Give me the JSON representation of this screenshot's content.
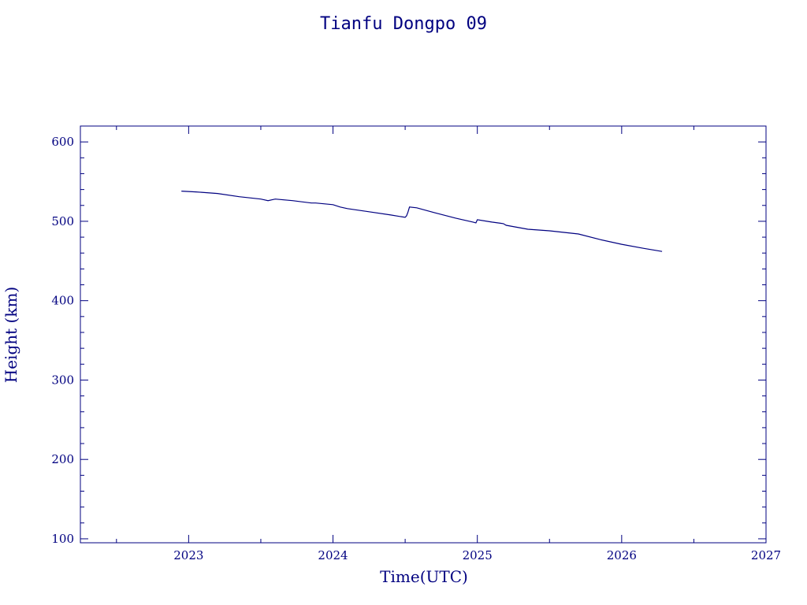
{
  "chart_data": {
    "type": "line",
    "title": "Tianfu Dongpo 09",
    "xlabel": "Time(UTC)",
    "ylabel": "Height (km)",
    "xlim": [
      2022.25,
      2027.0
    ],
    "ylim": [
      95,
      620
    ],
    "x_ticks": [
      "2023",
      "2024",
      "2025",
      "2026",
      "2027"
    ],
    "x_tick_values": [
      2023,
      2024,
      2025,
      2026,
      2027
    ],
    "y_ticks": [
      "100",
      "200",
      "300",
      "400",
      "500",
      "600"
    ],
    "y_tick_values": [
      100,
      200,
      300,
      400,
      500,
      600
    ],
    "grid": false,
    "color": "#000080",
    "series": [
      {
        "x": [
          2022.95,
          2023.05,
          2023.2,
          2023.35,
          2023.5,
          2023.55,
          2023.6,
          2023.72,
          2023.85,
          2023.88,
          2024.0,
          2024.05,
          2024.1,
          2024.25,
          2024.4,
          2024.5,
          2024.51,
          2024.52,
          2024.53,
          2024.58,
          2024.7,
          2024.85,
          2024.97,
          2024.99,
          2025.0,
          2025.1,
          2025.18,
          2025.2,
          2025.35,
          2025.5,
          2025.7,
          2025.85,
          2026.0,
          2026.15,
          2026.28
        ],
        "y": [
          538,
          537,
          535,
          531,
          528,
          526,
          528,
          526,
          523,
          523,
          521,
          518,
          516,
          512,
          508,
          505,
          507,
          512,
          518,
          517,
          511,
          504,
          499,
          498,
          502,
          499,
          497,
          495,
          490,
          488,
          484,
          477,
          471,
          466,
          462
        ]
      }
    ]
  }
}
